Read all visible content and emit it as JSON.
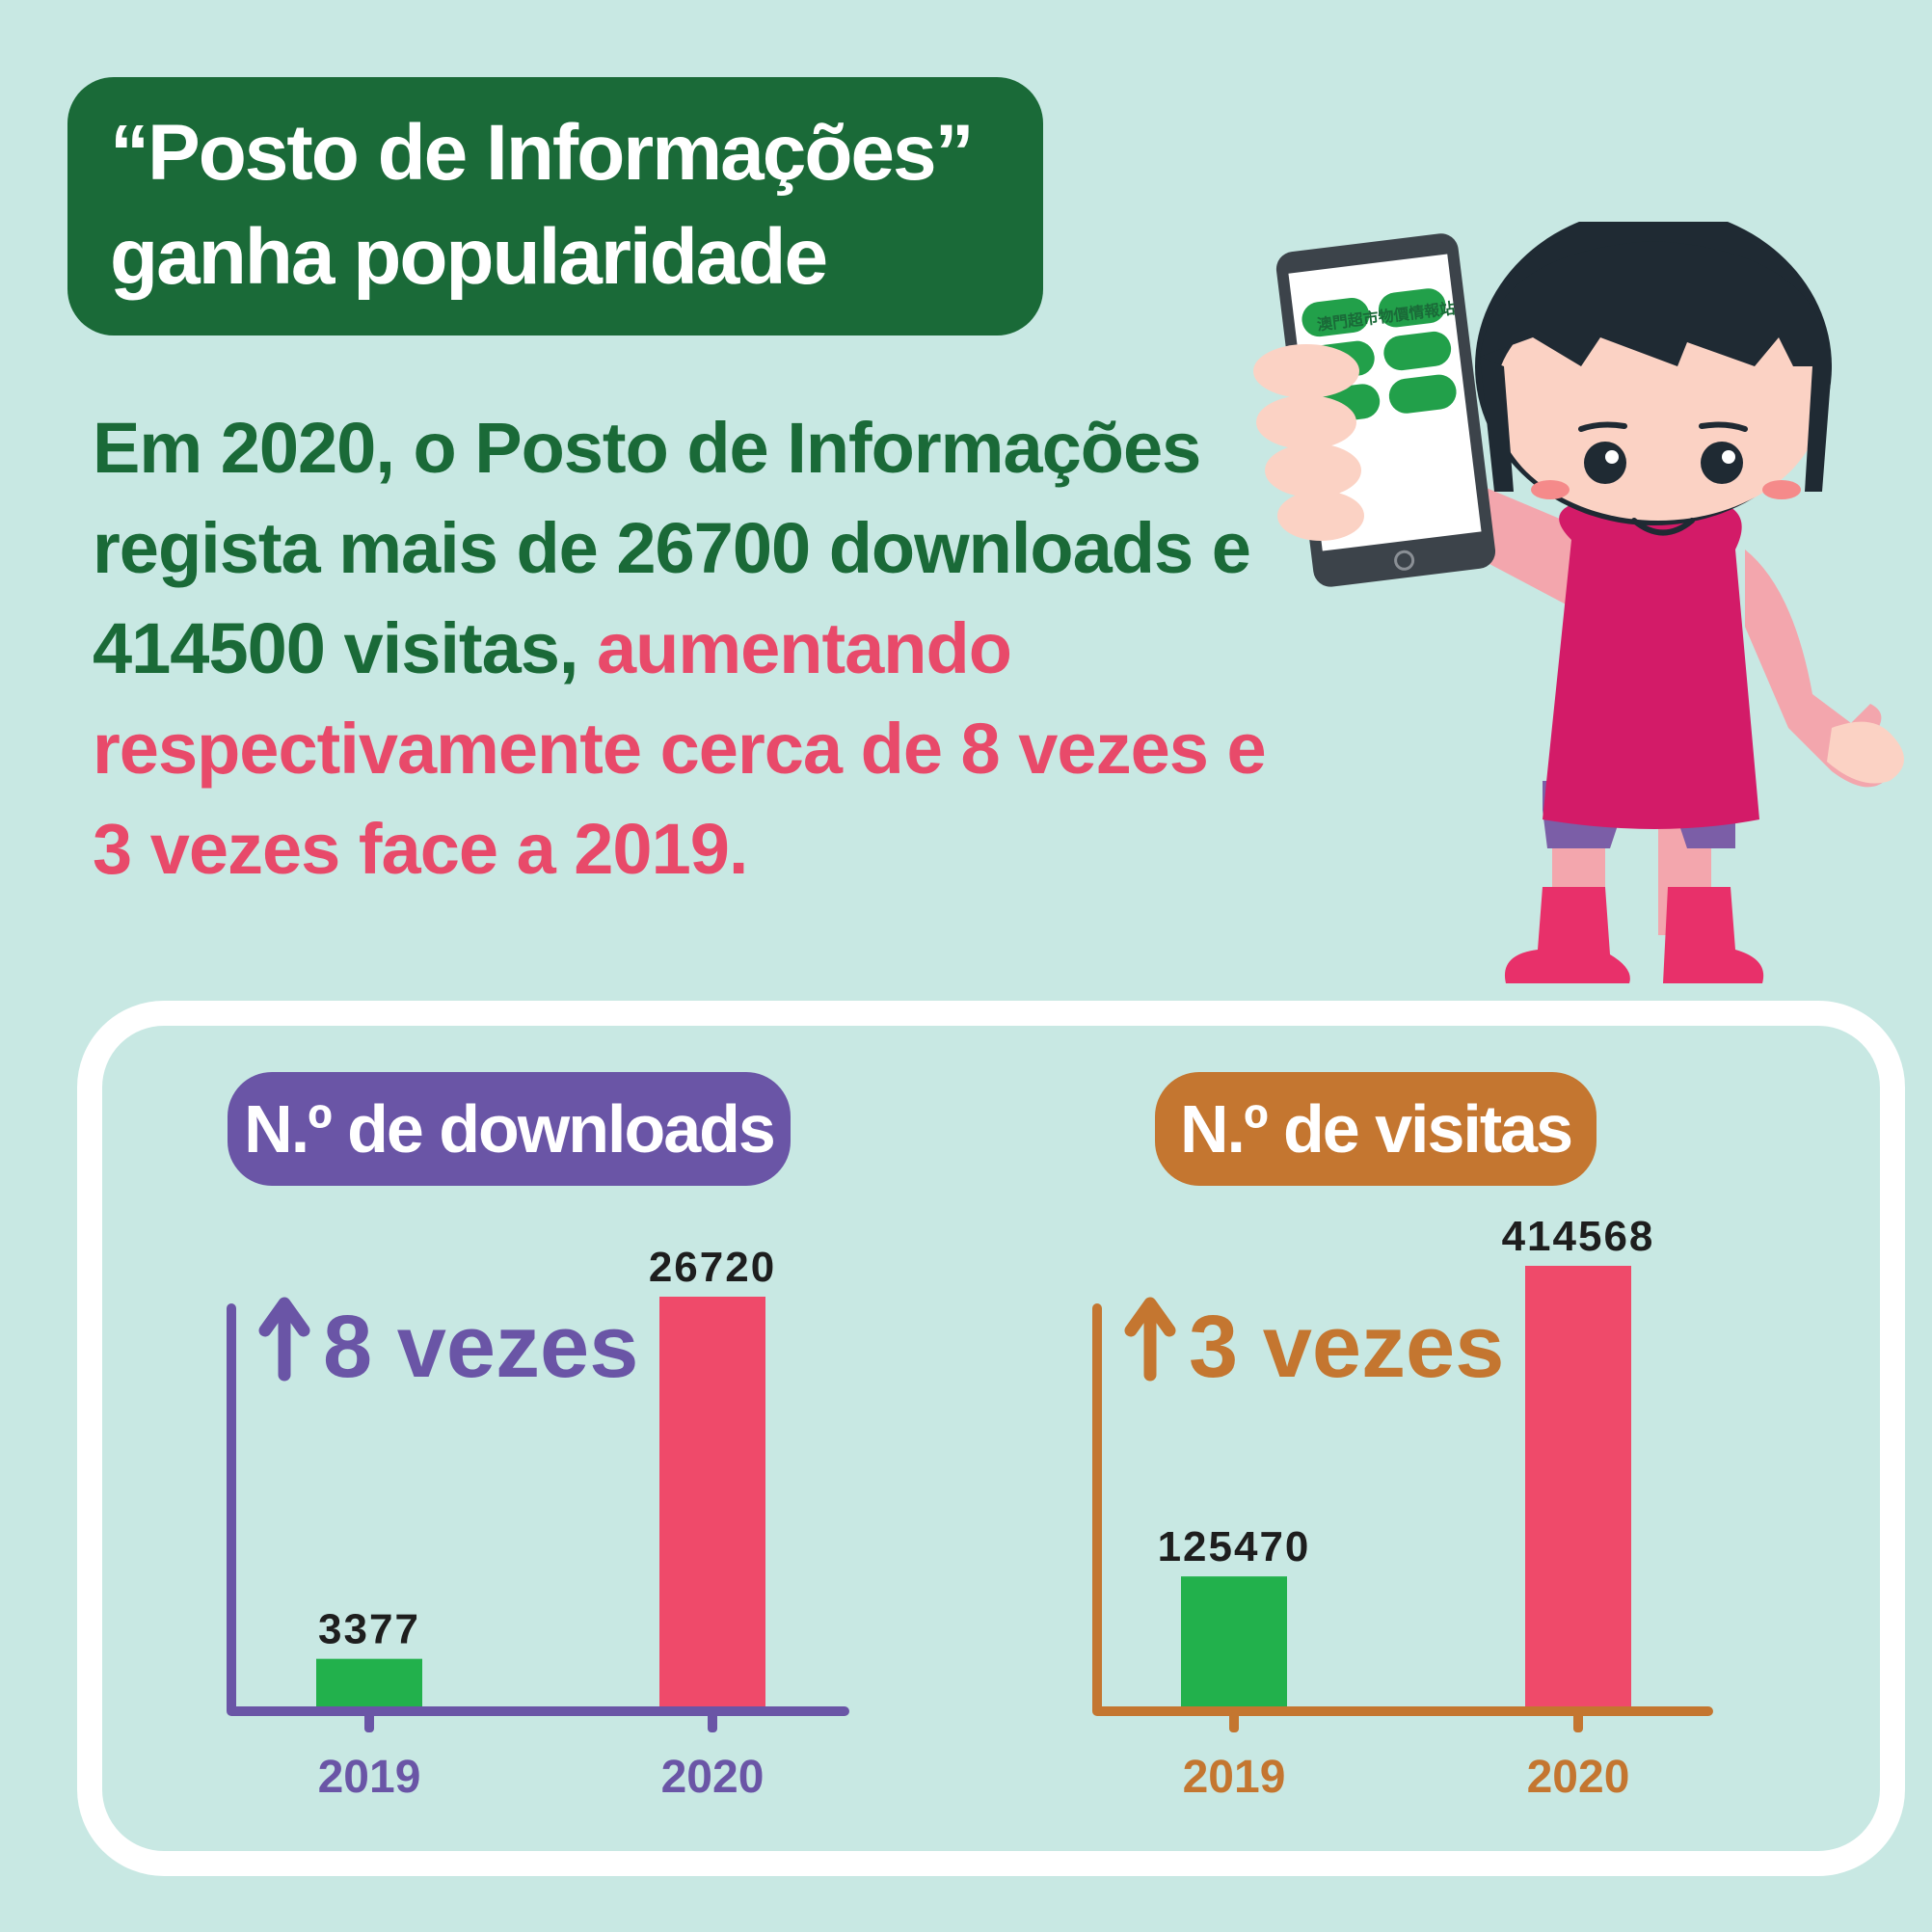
{
  "title": {
    "line1": "“Posto de Informações”",
    "line2": "ganha  popularidade"
  },
  "body": {
    "line1": "Em 2020, o Posto de Informações",
    "line2": "regista mais de 26700 downloads e",
    "line3_green": "414500 visitas, ",
    "line3_pink": "aumentando",
    "line4": "respectivamente cerca de 8 vezes e",
    "line5": "3 vezes face a 2019."
  },
  "phone": {
    "app_title": "澳門超市物價情報站"
  },
  "colors": {
    "dark_green": "#1a6a38",
    "pink_text": "#e84a6a",
    "bar_2019": "#22b14c",
    "bar_2020": "#ef4a6a",
    "downloads_accent": "#6a55a6",
    "visits_accent": "#c47630",
    "background": "#c8e8e3"
  },
  "chart_data": [
    {
      "type": "bar",
      "title": "N.º de downloads",
      "categories": [
        "2019",
        "2020"
      ],
      "values": [
        3377,
        26720
      ],
      "value_labels": [
        "3377",
        "26720"
      ],
      "annotation": "8 vezes",
      "annotation_icon": "up-arrow-icon",
      "grid": false
    },
    {
      "type": "bar",
      "title": "N.º de visitas",
      "categories": [
        "2019",
        "2020"
      ],
      "values": [
        125470,
        414568
      ],
      "value_labels": [
        "125470",
        "414568"
      ],
      "annotation": "3 vezes",
      "annotation_icon": "up-arrow-icon",
      "grid": false
    }
  ]
}
